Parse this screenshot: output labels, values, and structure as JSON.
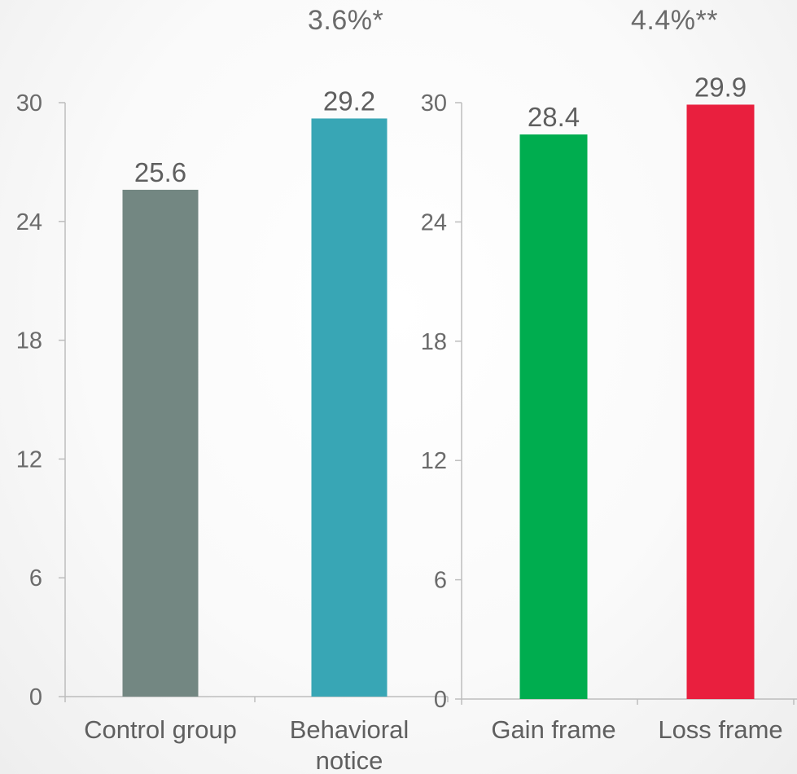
{
  "chart_data": [
    {
      "type": "bar",
      "annotation": "3.6%*",
      "categories": [
        "Control group",
        "Behavioral notice"
      ],
      "category_lines": [
        [
          "Control group"
        ],
        [
          "Behavioral",
          "notice"
        ]
      ],
      "values": [
        25.6,
        29.2
      ],
      "value_labels": [
        "25.6",
        "29.2"
      ],
      "colors": [
        "#738782",
        "#38a6b5"
      ],
      "yticks": [
        "0",
        "6",
        "12",
        "18",
        "24",
        "30"
      ],
      "ylim": [
        0,
        30
      ],
      "grid": false
    },
    {
      "type": "bar",
      "annotation": "4.4%**",
      "categories": [
        "Gain frame",
        "Loss frame"
      ],
      "category_lines": [
        [
          "Gain frame"
        ],
        [
          "Loss frame"
        ]
      ],
      "values": [
        28.4,
        29.9
      ],
      "value_labels": [
        "28.4",
        "29.9"
      ],
      "colors": [
        "#00ad4f",
        "#e91f3e"
      ],
      "yticks": [
        "0",
        "6",
        "12",
        "18",
        "24",
        "30"
      ],
      "ylim": [
        0,
        30
      ],
      "grid": false
    }
  ]
}
